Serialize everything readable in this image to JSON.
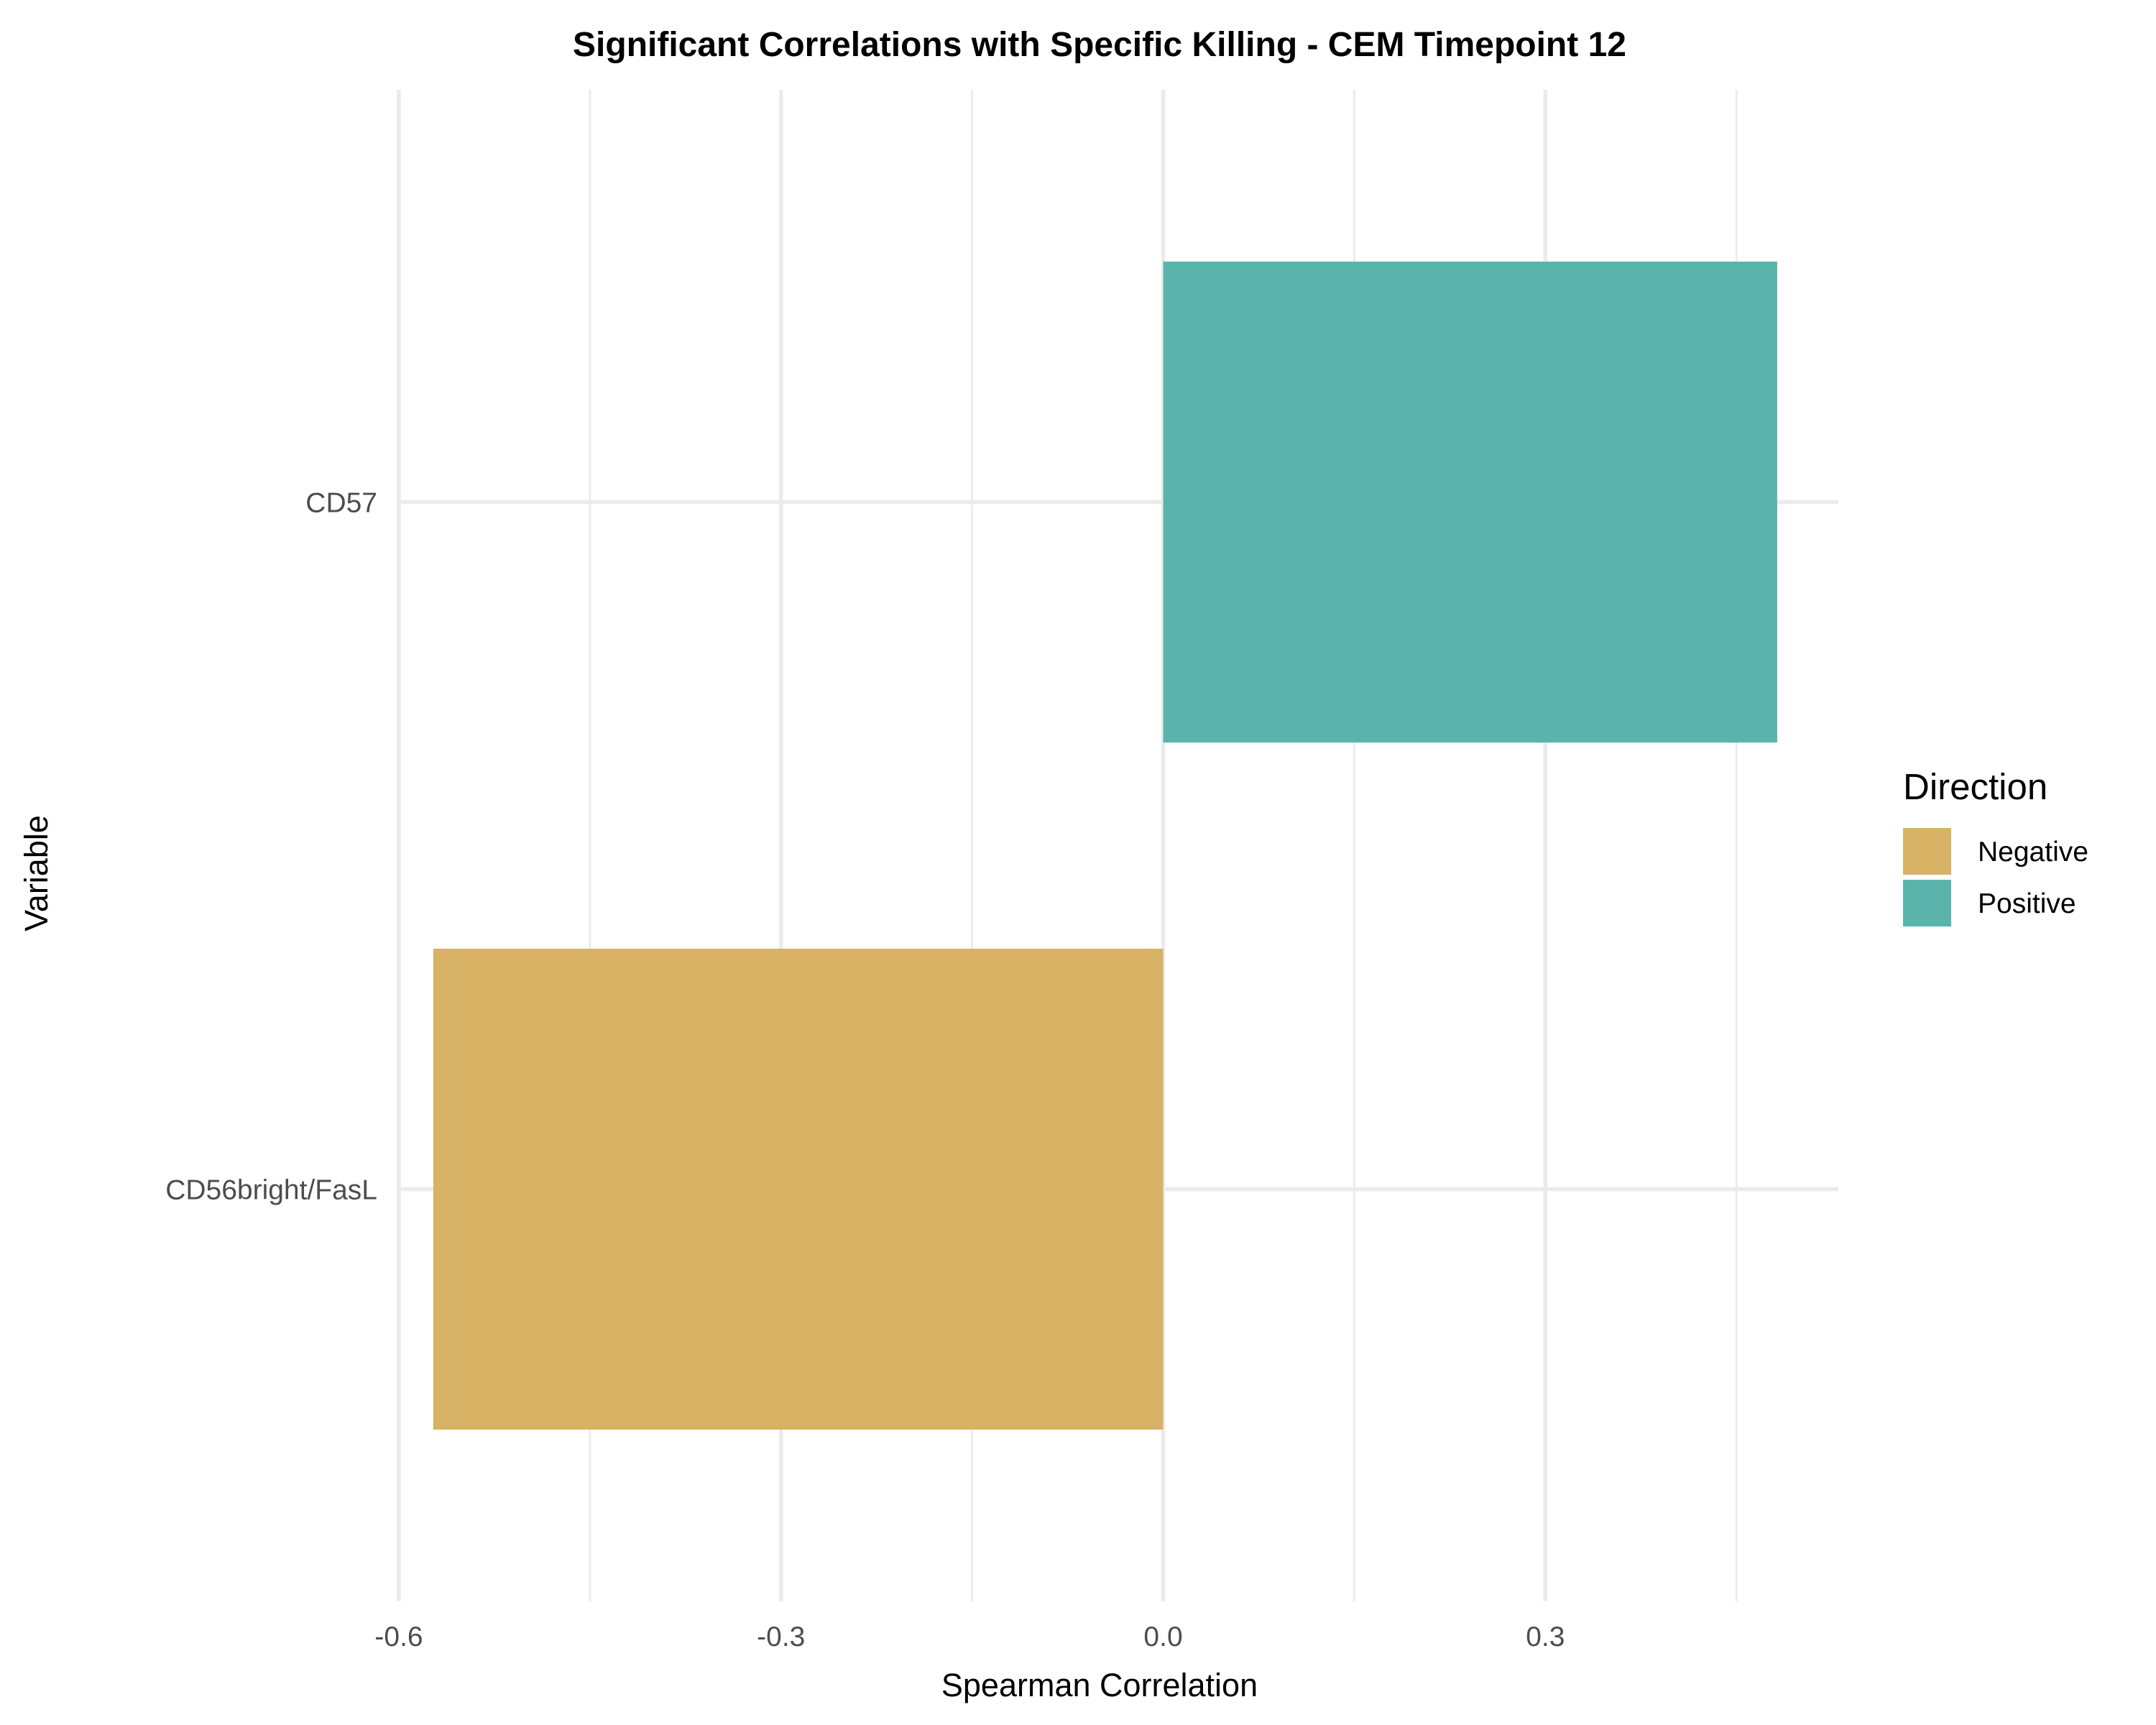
{
  "chart_data": {
    "type": "bar",
    "orientation": "horizontal",
    "title": "Significant Correlations with Specific Killing - CEM Timepoint 12",
    "xlabel": "Spearman Correlation",
    "ylabel": "Variable",
    "xlim": [
      -0.6,
      0.53
    ],
    "x_ticks": [
      -0.6,
      -0.3,
      0.0,
      0.3
    ],
    "x_tick_labels": [
      "-0.6",
      "-0.3",
      "0.0",
      "0.3"
    ],
    "x_minor_ticks": [
      -0.45,
      -0.15,
      0.15,
      0.45
    ],
    "categories": [
      "CD56bright/FasL",
      "CD57"
    ],
    "values": [
      -0.573,
      0.482
    ],
    "directions": [
      "Negative",
      "Positive"
    ],
    "grid": true,
    "legend": {
      "title": "Direction",
      "position": "right",
      "entries": [
        {
          "label": "Negative",
          "color": "#d8b365"
        },
        {
          "label": "Positive",
          "color": "#5ab4ac"
        }
      ]
    }
  }
}
